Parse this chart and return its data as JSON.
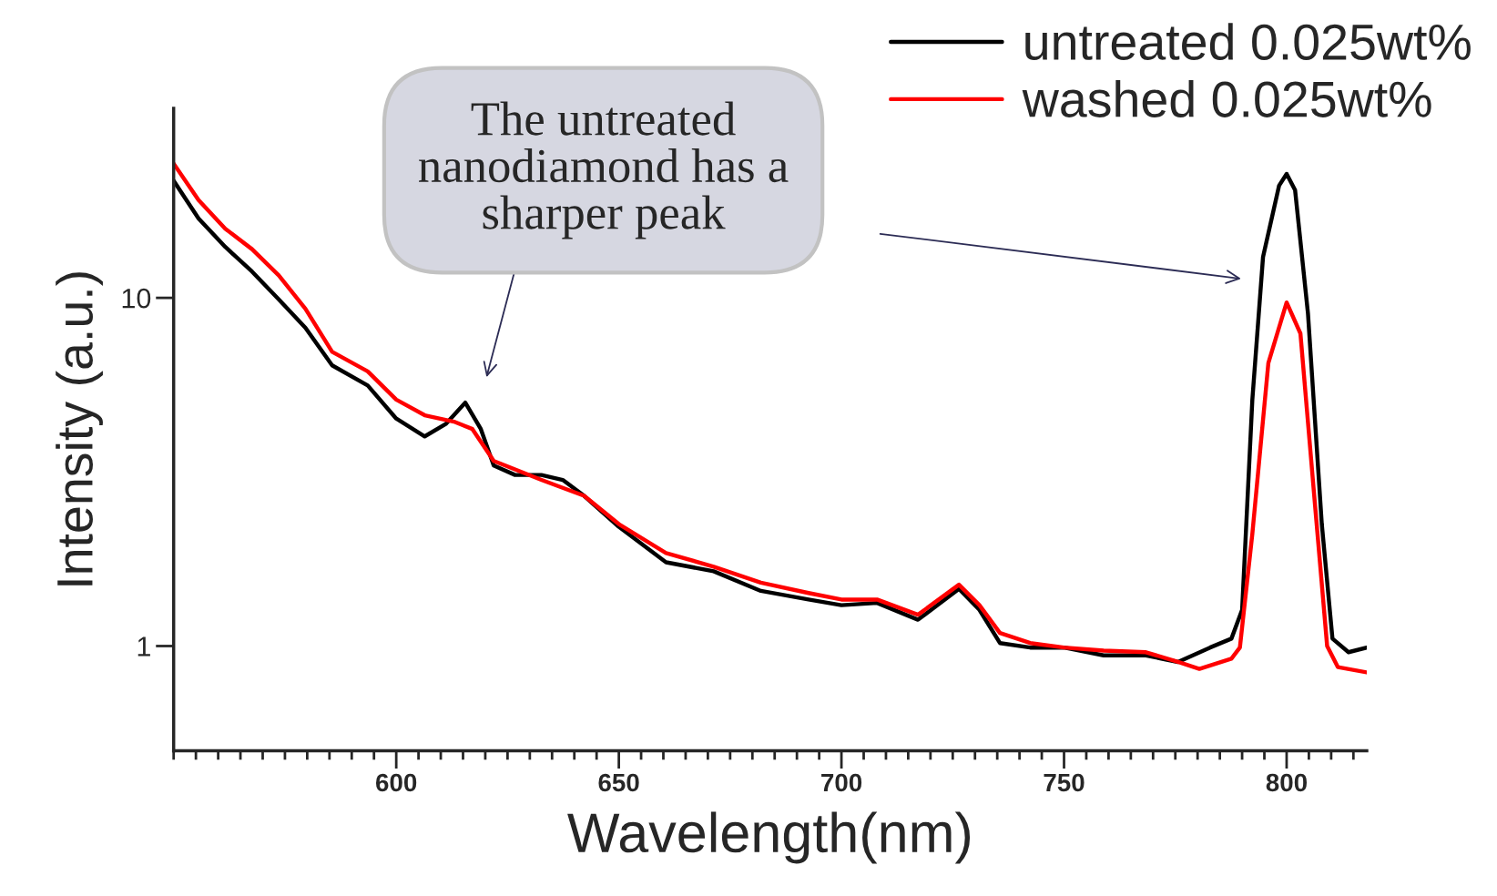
{
  "chart_data": {
    "type": "line",
    "xlabel": "Wavelength(nm)",
    "ylabel": "Intensity (a.u.)",
    "log": "y",
    "legend": "top right",
    "xlim": [
      550,
      818
    ],
    "ylim": [
      0.5,
      35
    ],
    "xticks": [
      600,
      650,
      700,
      750,
      800
    ],
    "yticks": [
      1,
      10
    ],
    "annotations": [
      "The untreated\nnanodiamond has a\nsharper peak"
    ],
    "series": [
      {
        "name": "untreated 0.025wt%",
        "color": "#000000",
        "x": [
          550,
          555.6,
          561.6,
          567.6,
          573.6,
          579.6,
          585.6,
          593.6,
          600,
          606.4,
          611.2,
          615.5,
          619,
          621.9,
          626.7,
          632.6,
          637.4,
          642.2,
          650,
          660.6,
          671.3,
          681.9,
          692.6,
          700,
          708,
          717.2,
          726.4,
          731,
          735.6,
          742.4,
          750,
          758.9,
          768.4,
          775.6,
          782.8,
          787.6,
          790,
          792.3,
          794.7,
          798.3,
          800,
          801.9,
          804.8,
          807.9,
          810.3,
          813.9,
          818
        ],
        "values": [
          21.7,
          16.9,
          14.0,
          11.9,
          9.9,
          8.2,
          6.4,
          5.6,
          4.5,
          4.0,
          4.35,
          5.0,
          4.2,
          3.3,
          3.1,
          3.1,
          3.0,
          2.7,
          2.2,
          1.74,
          1.64,
          1.44,
          1.36,
          1.31,
          1.33,
          1.19,
          1.46,
          1.27,
          1.02,
          0.99,
          0.99,
          0.94,
          0.94,
          0.9,
          0.99,
          1.05,
          1.27,
          5.1,
          13.1,
          21.0,
          22.7,
          20.4,
          9.0,
          2.24,
          1.05,
          0.96,
          0.99
        ]
      },
      {
        "name": "washed 0.025wt%",
        "color": "#ff0000",
        "x": [
          550,
          555.6,
          561.6,
          567.6,
          573.6,
          579.6,
          585.6,
          593.6,
          600,
          606.4,
          613.2,
          617.1,
          621.9,
          632.6,
          642.2,
          650,
          660.6,
          671.3,
          681.9,
          692.6,
          700,
          708,
          717.2,
          726.4,
          731,
          735.6,
          742.4,
          750,
          758.9,
          768.4,
          775.6,
          780.4,
          787.6,
          789.5,
          792.3,
          795.9,
          800,
          803.1,
          806.2,
          809.1,
          811.5,
          818
        ],
        "values": [
          24.3,
          19.1,
          15.8,
          13.8,
          11.6,
          9.3,
          7.0,
          6.15,
          5.1,
          4.6,
          4.4,
          4.2,
          3.4,
          3.0,
          2.7,
          2.24,
          1.85,
          1.69,
          1.52,
          1.42,
          1.36,
          1.36,
          1.23,
          1.5,
          1.31,
          1.09,
          1.02,
          0.99,
          0.97,
          0.96,
          0.9,
          0.86,
          0.92,
          0.99,
          2.1,
          6.5,
          9.7,
          7.9,
          2.7,
          1.0,
          0.87,
          0.84
        ]
      }
    ]
  }
}
